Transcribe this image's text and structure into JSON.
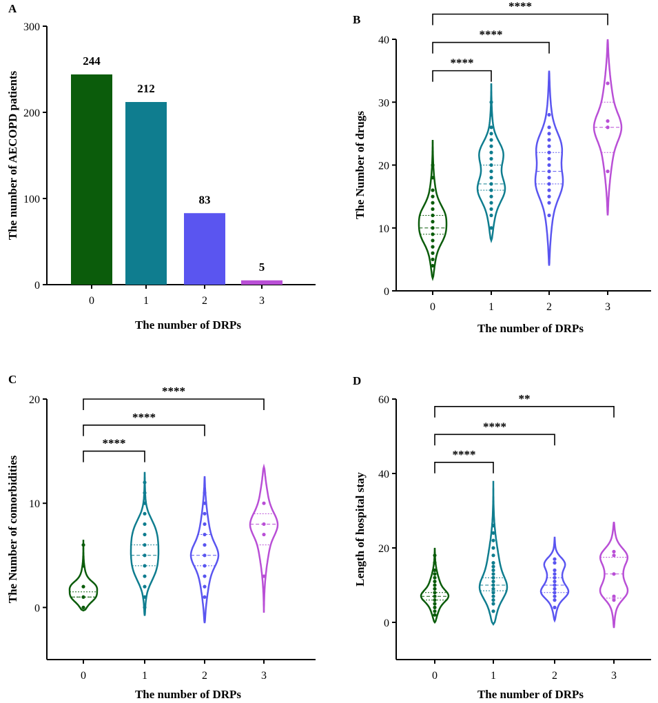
{
  "colors": [
    "#0b5c0b",
    "#0f7d8f",
    "#5a55f0",
    "#b94fd6"
  ],
  "chart_data": [
    {
      "panel": "A",
      "type": "bar",
      "categories": [
        "0",
        "1",
        "2",
        "3"
      ],
      "values": [
        244,
        212,
        83,
        5
      ],
      "value_labels": [
        "244",
        "212",
        "83",
        "5"
      ],
      "xlabel": "The number of DRPs",
      "ylabel": "The number of AECOPD patients",
      "ylim": [
        0,
        300
      ],
      "yticks": [
        0,
        100,
        200,
        300
      ],
      "ytick_labels": [
        "0",
        "100",
        "200",
        "300"
      ]
    },
    {
      "panel": "B",
      "type": "violin",
      "categories": [
        "0",
        "1",
        "2",
        "3"
      ],
      "xlabel": "The number of DRPs",
      "ylabel": "The Number of drugs",
      "ylim": [
        0,
        40
      ],
      "yticks": [
        0,
        10,
        20,
        30,
        40
      ],
      "ytick_labels": [
        "0",
        "10",
        "20",
        "30",
        "40"
      ],
      "series": [
        {
          "name": "0",
          "min": 2,
          "max": 24,
          "median": 10,
          "q1": 9,
          "q3": 12,
          "modes": [
            9,
            12
          ],
          "points": [
            4,
            5,
            6,
            7,
            8,
            9,
            10,
            11,
            12,
            13,
            14,
            15,
            16,
            18,
            20
          ]
        },
        {
          "name": "1",
          "min": 8,
          "max": 33,
          "median": 17,
          "q1": 16,
          "q3": 20,
          "modes": [
            16,
            22
          ],
          "points": [
            10,
            12,
            13,
            14,
            15,
            16,
            17,
            18,
            19,
            20,
            21,
            22,
            23,
            24,
            25,
            26,
            28,
            30
          ]
        },
        {
          "name": "2",
          "min": 4,
          "max": 35,
          "median": 19,
          "q1": 17,
          "q3": 22,
          "modes": [
            17,
            23
          ],
          "points": [
            12,
            14,
            15,
            16,
            17,
            18,
            19,
            20,
            21,
            22,
            23,
            24,
            25,
            26,
            28
          ]
        },
        {
          "name": "3",
          "min": 12,
          "max": 40,
          "median": 26,
          "q1": 22,
          "q3": 30,
          "modes": [
            26
          ],
          "points": [
            19,
            26,
            27,
            33
          ]
        }
      ],
      "comparisons": [
        {
          "from": "0",
          "to": "1",
          "label": "****",
          "y": 35
        },
        {
          "from": "0",
          "to": "2",
          "label": "****",
          "y": 39.5
        },
        {
          "from": "0",
          "to": "3",
          "label": "****",
          "y": 44
        }
      ]
    },
    {
      "panel": "C",
      "type": "violin",
      "categories": [
        "0",
        "1",
        "2",
        "3"
      ],
      "xlabel": "The number of DRPs",
      "ylabel": "The Number of comorbidities",
      "ylim": [
        -5,
        20
      ],
      "yticks": [
        0,
        10,
        20
      ],
      "ytick_labels": [
        "0",
        "10",
        "20"
      ],
      "series": [
        {
          "name": "0",
          "min": -0.3,
          "max": 6.5,
          "median": 1,
          "q1": 1,
          "q3": 1.5,
          "modes": [
            1,
            2
          ],
          "points": [
            0,
            1,
            2,
            4,
            6
          ]
        },
        {
          "name": "1",
          "min": -0.8,
          "max": 13,
          "median": 5,
          "q1": 4,
          "q3": 6,
          "modes": [
            3,
            4,
            5,
            6,
            7,
            8
          ],
          "points": [
            0,
            1,
            2,
            3,
            4,
            5,
            6,
            7,
            8,
            9,
            10,
            11,
            12
          ]
        },
        {
          "name": "2",
          "min": -1.5,
          "max": 12.6,
          "median": 5,
          "q1": 4,
          "q3": 7,
          "modes": [
            5
          ],
          "points": [
            1,
            2,
            3,
            4,
            5,
            6,
            7,
            8,
            9,
            10,
            11
          ]
        },
        {
          "name": "3",
          "min": -0.5,
          "max": 13.5,
          "median": 8,
          "q1": 6,
          "q3": 9,
          "modes": [
            8
          ],
          "points": [
            3,
            7,
            8,
            10
          ]
        }
      ],
      "comparisons": [
        {
          "from": "0",
          "to": "1",
          "label": "****",
          "y": 15
        },
        {
          "from": "0",
          "to": "2",
          "label": "****",
          "y": 17.5
        },
        {
          "from": "0",
          "to": "3",
          "label": "****",
          "y": 20
        }
      ]
    },
    {
      "panel": "D",
      "type": "violin",
      "categories": [
        "0",
        "1",
        "2",
        "3"
      ],
      "xlabel": "The number of DRPs",
      "ylabel": "Length of hospital stay",
      "ylim": [
        -10,
        60
      ],
      "yticks": [
        0,
        20,
        40,
        60
      ],
      "ytick_labels": [
        "0",
        "20",
        "40",
        "60"
      ],
      "series": [
        {
          "name": "0",
          "min": 0,
          "max": 20,
          "median": 7,
          "q1": 6,
          "q3": 8,
          "modes": [
            7
          ],
          "points": [
            2,
            3,
            4,
            5,
            6,
            7,
            8,
            9,
            10,
            11,
            12,
            13,
            14,
            16,
            18
          ]
        },
        {
          "name": "1",
          "min": -0.5,
          "max": 38,
          "median": 10,
          "q1": 8.5,
          "q3": 12,
          "modes": [
            9
          ],
          "points": [
            3,
            5,
            6,
            7,
            8,
            9,
            10,
            11,
            12,
            13,
            14,
            15,
            16,
            18,
            20,
            22,
            24,
            26
          ]
        },
        {
          "name": "2",
          "min": 0.5,
          "max": 23,
          "median": 10,
          "q1": 8,
          "q3": 12,
          "modes": [
            8,
            16
          ],
          "points": [
            4,
            6,
            7,
            8,
            9,
            10,
            11,
            12,
            13,
            14,
            16,
            17
          ]
        },
        {
          "name": "3",
          "min": -1.5,
          "max": 27,
          "median": 13,
          "q1": 6.5,
          "q3": 17.5,
          "modes": [
            8,
            18
          ],
          "points": [
            6,
            7,
            13,
            18,
            19
          ]
        }
      ],
      "comparisons": [
        {
          "from": "0",
          "to": "1",
          "label": "****",
          "y": 43
        },
        {
          "from": "0",
          "to": "2",
          "label": "****",
          "y": 50.5
        },
        {
          "from": "0",
          "to": "3",
          "label": "**",
          "y": 58
        }
      ]
    }
  ]
}
